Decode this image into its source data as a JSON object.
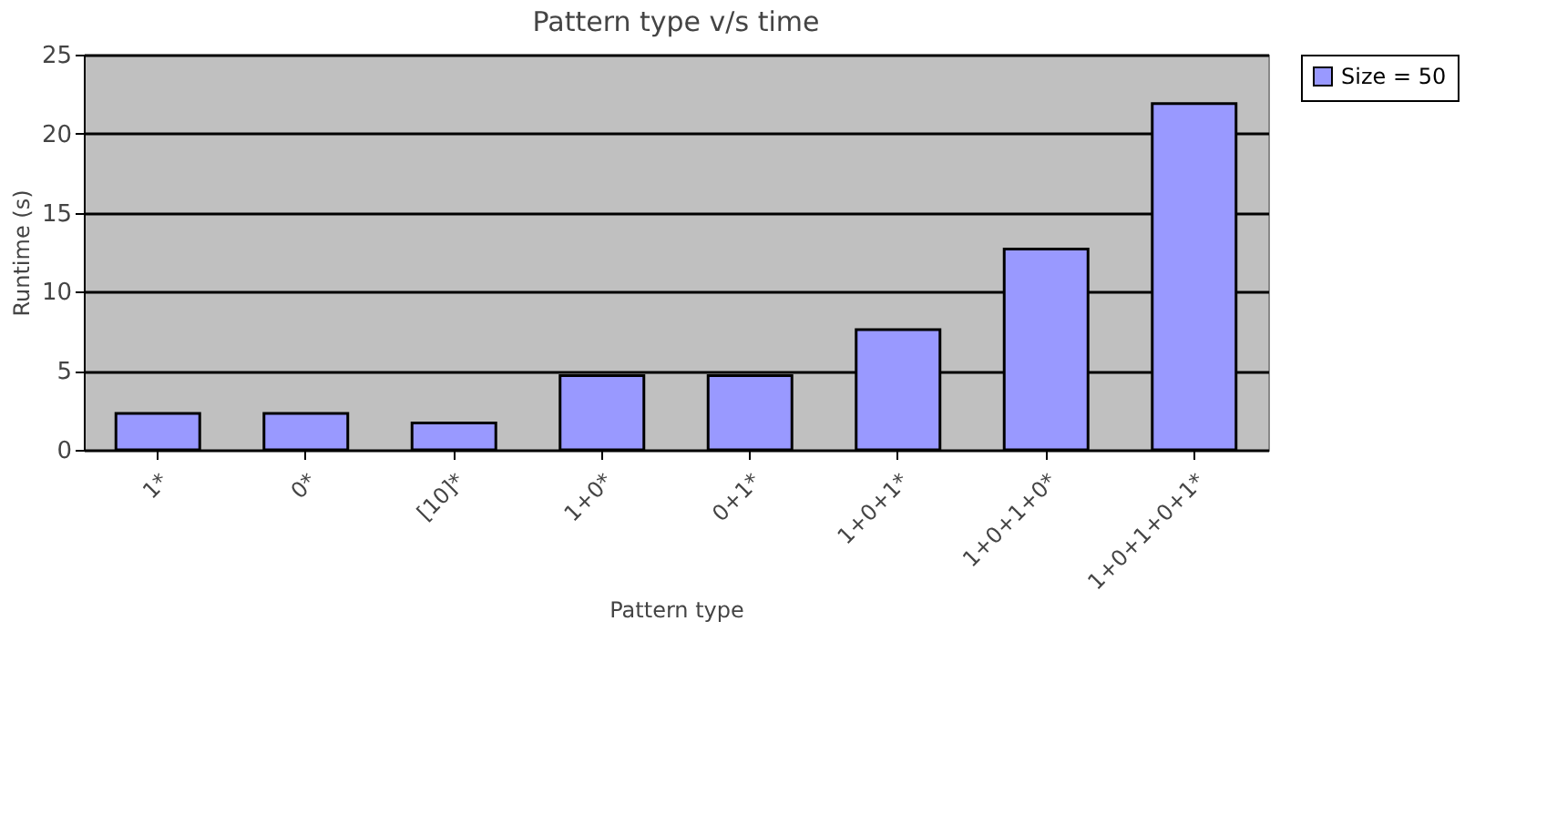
{
  "chart_data": {
    "type": "bar",
    "title": "Pattern type v/s time",
    "xlabel": "Pattern type",
    "ylabel": "Runtime (s)",
    "categories": [
      "1*",
      "0*",
      "[10]*",
      "1+0*",
      "0+1*",
      "1+0+1*",
      "1+0+1+0*",
      "1+0+1+0+1*"
    ],
    "series": [
      {
        "name": "Size = 50",
        "color": "#9999ff",
        "values": [
          2.3,
          2.3,
          1.7,
          4.7,
          4.7,
          7.6,
          12.7,
          21.9
        ]
      }
    ],
    "ylim": [
      0,
      25
    ],
    "yticks": [
      0,
      5,
      10,
      15,
      20,
      25
    ],
    "grid": "y",
    "legend": "right"
  }
}
